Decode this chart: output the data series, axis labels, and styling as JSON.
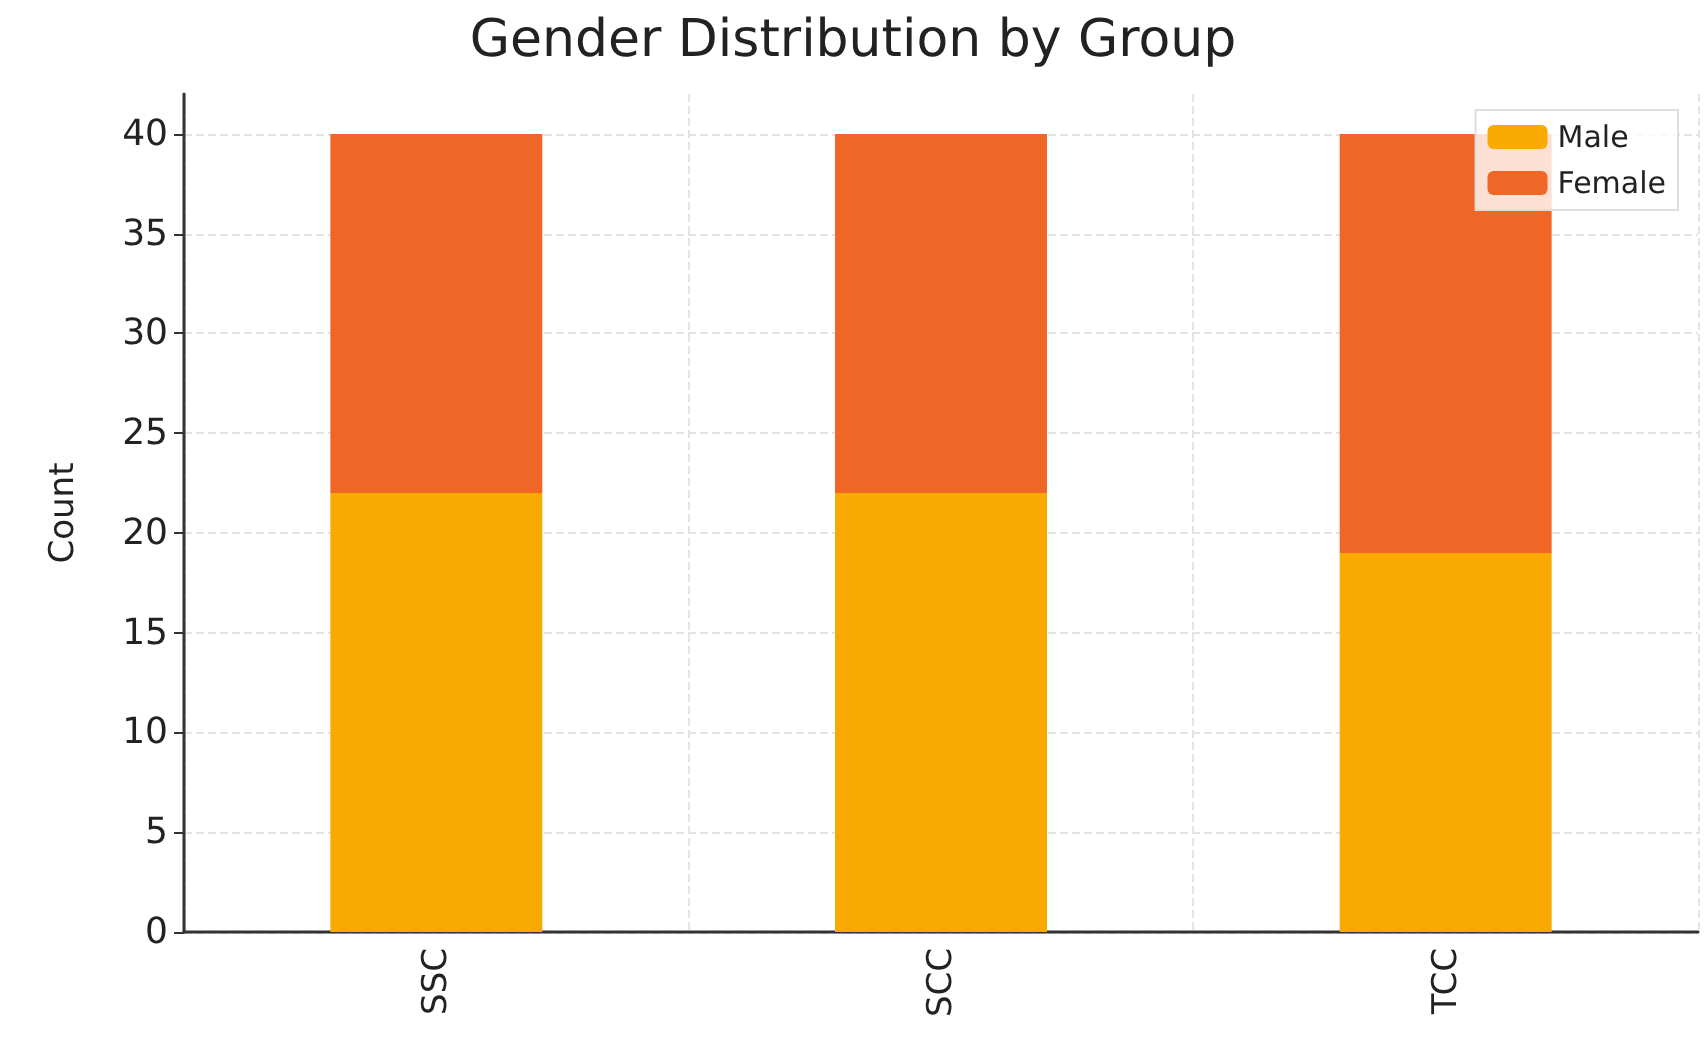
{
  "chart_data": {
    "type": "bar",
    "title": "Gender Distribution by Group",
    "ylabel": "Count",
    "categories": [
      "SSC",
      "SCC",
      "TCC"
    ],
    "series": [
      {
        "name": "Male",
        "color": "#f9aa00",
        "values": [
          22,
          22,
          19
        ]
      },
      {
        "name": "Female",
        "color": "#ef6626",
        "values": [
          18,
          18,
          21
        ]
      }
    ],
    "stacked": true,
    "ylim": [
      0,
      42
    ],
    "yticks": [
      0,
      5,
      10,
      15,
      20,
      25,
      30,
      35,
      40
    ],
    "grid": true,
    "legend": "top right"
  }
}
